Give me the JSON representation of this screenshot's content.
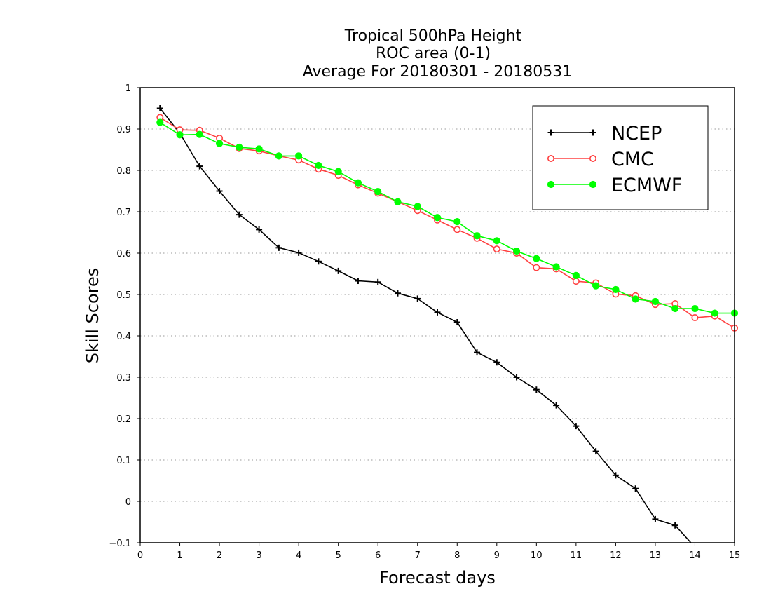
{
  "chart_data": {
    "type": "line",
    "title_lines": [
      "Tropical 500hPa Height",
      "ROC area (0-1)",
      "Average For 20180301 - 20180531"
    ],
    "xlabel": "Forecast days",
    "ylabel": "Skill Scores",
    "xlim": [
      0,
      15
    ],
    "ylim": [
      -0.1,
      1
    ],
    "xticks": [
      0,
      1,
      2,
      3,
      4,
      5,
      6,
      7,
      8,
      9,
      10,
      11,
      12,
      13,
      14,
      15
    ],
    "yticks": [
      -0.1,
      0,
      0.1,
      0.2,
      0.3,
      0.4,
      0.5,
      0.6,
      0.7,
      0.8,
      0.9,
      1
    ],
    "xtick_labels": [
      "0",
      "1",
      "2",
      "3",
      "4",
      "5",
      "6",
      "7",
      "8",
      "9",
      "10",
      "11",
      "12",
      "13",
      "14",
      "15"
    ],
    "ytick_labels": [
      "−0.1",
      "0",
      "0.1",
      "0.2",
      "0.3",
      "0.4",
      "0.5",
      "0.6",
      "0.7",
      "0.8",
      "0.9",
      "1"
    ],
    "grid": "horizontal dotted",
    "legend_position": "top-right",
    "series": [
      {
        "name": "NCEP",
        "color": "#000000",
        "marker": "plus",
        "x": [
          0.5,
          1,
          1.5,
          2,
          2.5,
          3,
          3.5,
          4,
          4.5,
          5,
          5.5,
          6,
          6.5,
          7,
          7.5,
          8,
          8.5,
          9,
          9.5,
          10,
          10.5,
          11,
          11.5,
          12,
          12.5,
          13,
          13.5,
          13.9
        ],
        "y": [
          0.95,
          0.89,
          0.81,
          0.75,
          0.693,
          0.657,
          0.613,
          0.601,
          0.58,
          0.557,
          0.533,
          0.53,
          0.503,
          0.49,
          0.457,
          0.433,
          0.36,
          0.336,
          0.3,
          0.27,
          0.232,
          0.182,
          0.121,
          0.063,
          0.031,
          -0.043,
          -0.058,
          -0.1
        ]
      },
      {
        "name": "CMC",
        "color": "#ff4040",
        "marker": "open-circle",
        "x": [
          0.5,
          1,
          1.5,
          2,
          2.5,
          3,
          3.5,
          4,
          4.5,
          5,
          5.5,
          6,
          6.5,
          7,
          7.5,
          8,
          8.5,
          9,
          9.5,
          10,
          10.5,
          11,
          11.5,
          12,
          12.5,
          13,
          13.5,
          14,
          14.5,
          15
        ],
        "y": [
          0.928,
          0.898,
          0.897,
          0.878,
          0.853,
          0.847,
          0.835,
          0.825,
          0.803,
          0.788,
          0.765,
          0.745,
          0.724,
          0.703,
          0.68,
          0.657,
          0.636,
          0.61,
          0.6,
          0.565,
          0.562,
          0.532,
          0.528,
          0.501,
          0.497,
          0.476,
          0.478,
          0.444,
          0.448,
          0.419
        ]
      },
      {
        "name": "ECMWF",
        "color": "#00ff00",
        "marker": "filled-circle",
        "x": [
          0.5,
          1,
          1.5,
          2,
          2.5,
          3,
          3.5,
          4,
          4.5,
          5,
          5.5,
          6,
          6.5,
          7,
          7.5,
          8,
          8.5,
          9,
          9.5,
          10,
          10.5,
          11,
          11.5,
          12,
          12.5,
          13,
          13.5,
          14,
          14.5,
          15
        ],
        "y": [
          0.916,
          0.886,
          0.887,
          0.865,
          0.856,
          0.852,
          0.835,
          0.835,
          0.812,
          0.797,
          0.77,
          0.749,
          0.724,
          0.713,
          0.686,
          0.676,
          0.642,
          0.63,
          0.605,
          0.587,
          0.567,
          0.546,
          0.521,
          0.512,
          0.489,
          0.483,
          0.466,
          0.466,
          0.455,
          0.455
        ]
      }
    ]
  }
}
